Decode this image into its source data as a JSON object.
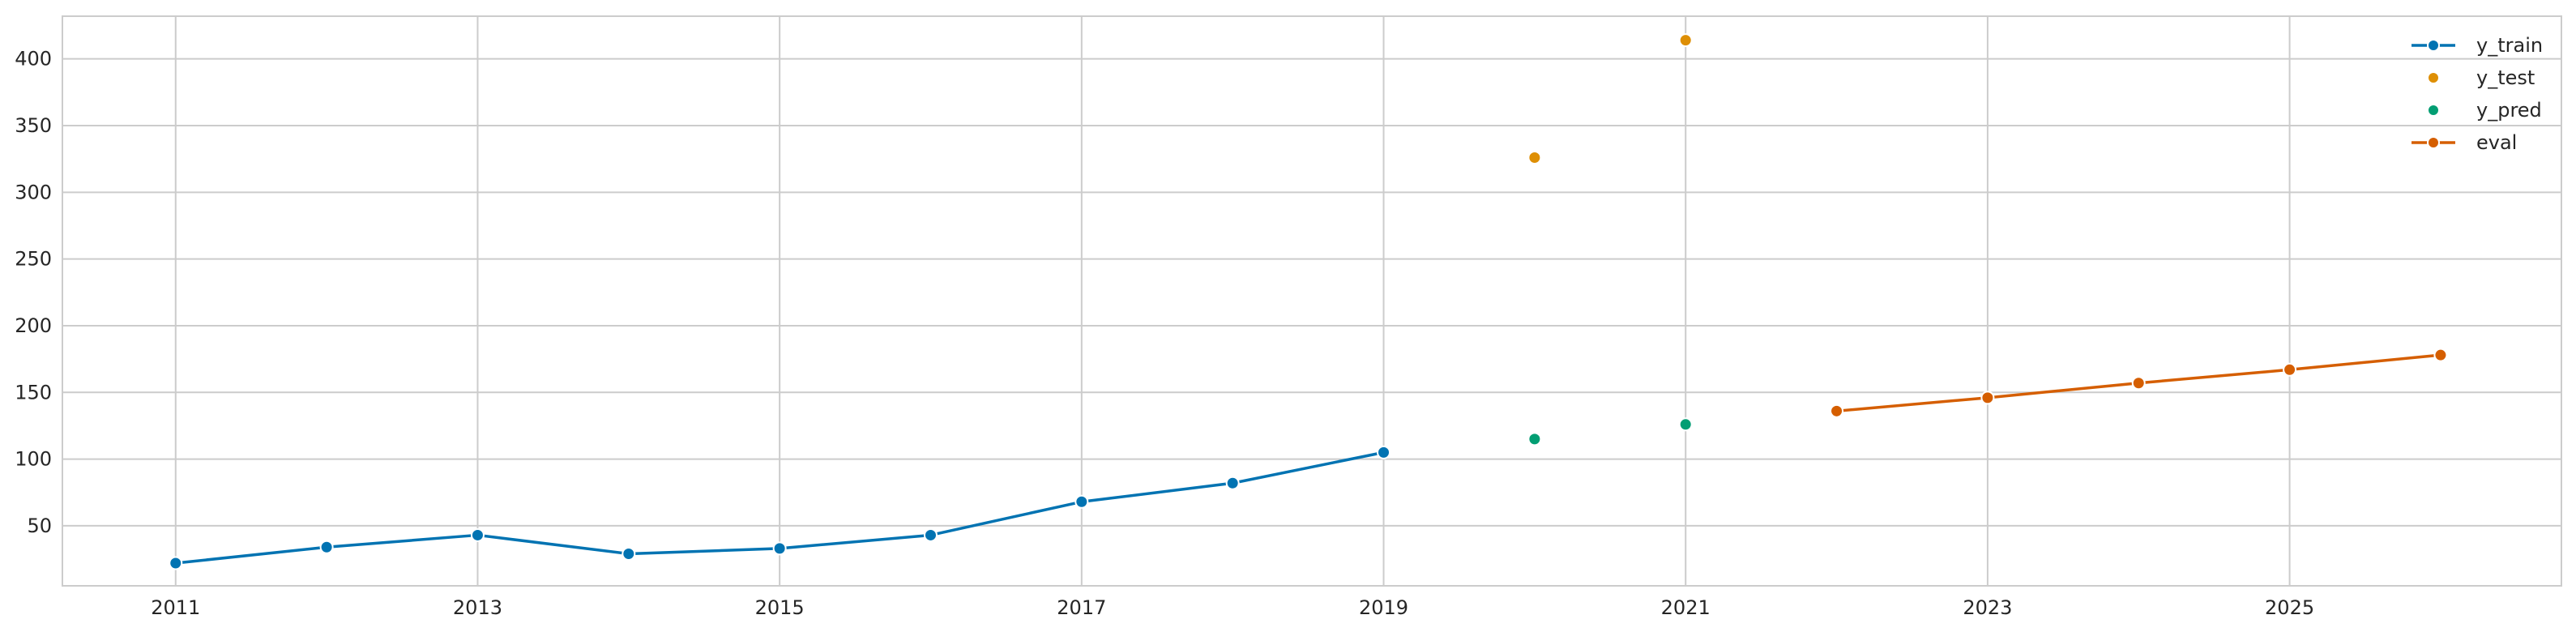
{
  "chart_data": {
    "type": "line",
    "title": "",
    "xlabel": "",
    "ylabel": "",
    "xlim": [
      2010.25,
      2026.8
    ],
    "ylim": [
      5,
      432
    ],
    "x_ticks": [
      2011,
      2013,
      2015,
      2017,
      2019,
      2021,
      2023,
      2025
    ],
    "y_ticks": [
      50,
      100,
      150,
      200,
      250,
      300,
      350,
      400
    ],
    "grid": true,
    "legend_position": "top-right",
    "series": [
      {
        "name": "y_train",
        "style": "line-marker",
        "color": "#0173b2",
        "x": [
          2011,
          2012,
          2013,
          2014,
          2015,
          2016,
          2017,
          2018,
          2019
        ],
        "y": [
          22,
          34,
          43,
          29,
          33,
          43,
          68,
          82,
          105
        ]
      },
      {
        "name": "y_test",
        "style": "marker",
        "color": "#de8f05",
        "x": [
          2020,
          2021
        ],
        "y": [
          326,
          414
        ]
      },
      {
        "name": "y_pred",
        "style": "marker",
        "color": "#029e73",
        "x": [
          2020,
          2021
        ],
        "y": [
          115,
          126
        ]
      },
      {
        "name": "eval",
        "style": "line-marker",
        "color": "#d55e00",
        "x": [
          2022,
          2023,
          2024,
          2025,
          2026
        ],
        "y": [
          136,
          146,
          157,
          167,
          178
        ]
      }
    ]
  }
}
